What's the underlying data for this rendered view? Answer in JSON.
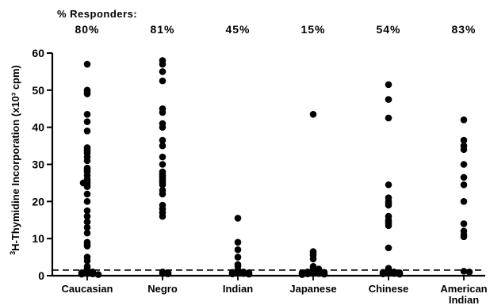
{
  "chart_data": {
    "type": "scatter",
    "header": "% Responders:",
    "ylabel": "3H-Thymidine Incorporation (x10³ cpm)",
    "ylim": [
      0,
      60
    ],
    "yticks": [
      0,
      10,
      20,
      30,
      40,
      50,
      60
    ],
    "threshold": 1.5,
    "categories": [
      "Caucasian",
      "Negro",
      "Indian",
      "Japanese",
      "Chinese",
      "American Indian"
    ],
    "category_lines": [
      [
        "Caucasian"
      ],
      [
        "Negro"
      ],
      [
        "Indian"
      ],
      [
        "Japanese"
      ],
      [
        "Chinese"
      ],
      [
        "American",
        "Indian"
      ]
    ],
    "responders": [
      "80%",
      "81%",
      "45%",
      "15%",
      "54%",
      "83%"
    ],
    "series": [
      {
        "values": [
          57,
          50,
          49.5,
          49,
          43.5,
          41.5,
          39,
          34.5,
          34,
          33.5,
          33,
          32,
          31,
          29,
          28.5,
          28,
          27,
          26,
          25.5,
          25,
          25,
          24.5,
          24,
          22,
          20,
          17.5,
          16,
          14.5,
          13,
          11.5,
          9,
          8.5,
          8,
          5,
          4,
          2.5,
          1.8,
          1.2,
          1,
          0.8,
          0.6,
          0.5,
          0.4,
          0.3
        ]
      },
      {
        "values": [
          58,
          57,
          55,
          52.5,
          45,
          44,
          41,
          40,
          36.5,
          35,
          32,
          30,
          28,
          27.5,
          27,
          26.5,
          26,
          25.5,
          25,
          24.5,
          23,
          22,
          19,
          18,
          17,
          16,
          1,
          0.8,
          0.6,
          0.5
        ]
      },
      {
        "values": [
          15.5,
          9,
          7,
          5,
          3,
          2.5,
          1.5,
          1.2,
          1,
          0.9,
          0.8,
          0.7,
          0.6,
          0.5,
          0.4
        ]
      },
      {
        "values": [
          43.5,
          6.5,
          6,
          5.5,
          4.5,
          2.5,
          2,
          1.8,
          1.6,
          1.4,
          1.2,
          1.1,
          1,
          0.9,
          0.8,
          0.7,
          0.6,
          0.5,
          0.4,
          0.3
        ]
      },
      {
        "values": [
          51.5,
          47.5,
          42.5,
          24.5,
          21,
          20,
          19.5,
          19,
          16,
          15,
          14.5,
          14,
          13.5,
          7.5,
          2,
          1.5,
          1.2,
          1,
          0.9,
          0.8,
          0.7,
          0.6,
          0.5,
          0.4
        ]
      },
      {
        "values": [
          42,
          36.5,
          35,
          34,
          30,
          26.5,
          24.5,
          20,
          14,
          12,
          11,
          10.5,
          1.2,
          1
        ]
      }
    ]
  }
}
